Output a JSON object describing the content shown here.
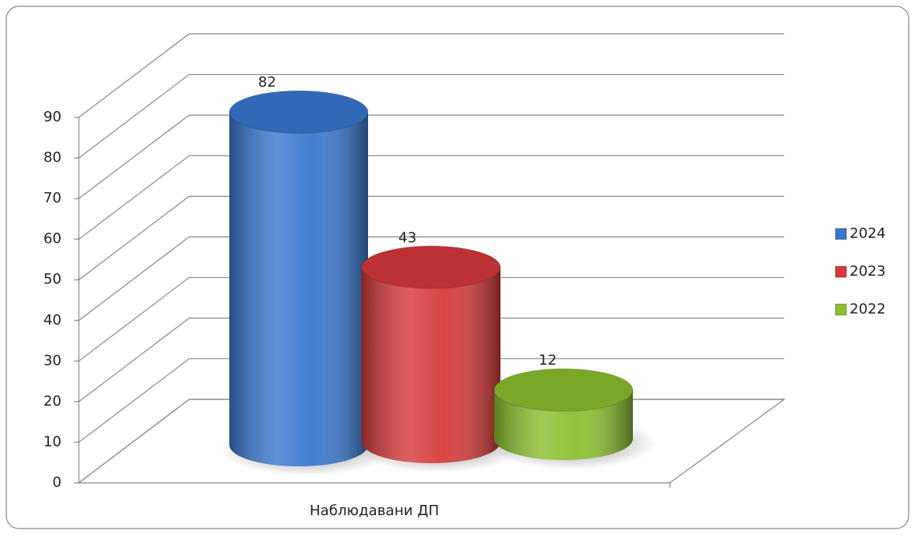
{
  "chart_data": {
    "type": "bar3d",
    "categories": [
      "Наблюдавани ДП"
    ],
    "series": [
      {
        "name": "2024",
        "color": "#3a78d0",
        "values": [
          82
        ]
      },
      {
        "name": "2023",
        "color": "#d63a3a",
        "values": [
          43
        ]
      },
      {
        "name": "2022",
        "color": "#8cbf2f",
        "values": [
          12
        ]
      }
    ],
    "ylim": [
      0,
      90
    ],
    "yticks": [
      0,
      10,
      20,
      30,
      40,
      50,
      60,
      70,
      80,
      90
    ],
    "grid": true,
    "legend": "right",
    "value_labels_shown": true
  }
}
